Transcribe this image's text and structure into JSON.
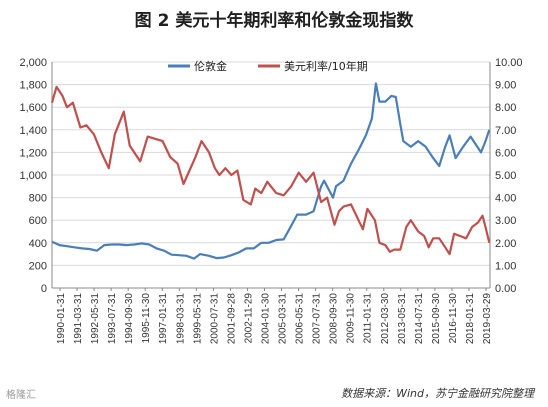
{
  "title": "图 2 美元十年期利率和伦敦金现指数",
  "source_note": "数据来源：Wind，苏宁金融研究院整理",
  "watermark": "格隆汇",
  "chart_data": {
    "type": "line",
    "left_axis": {
      "ylim": [
        0,
        2000
      ],
      "ticks": [
        "0",
        "200",
        "400",
        "600",
        "800",
        "1,000",
        "1,200",
        "1,400",
        "1,600",
        "1,800",
        "2,000"
      ]
    },
    "right_axis": {
      "ylim": [
        0,
        10
      ],
      "ticks": [
        "0.00",
        "1.00",
        "2.00",
        "3.00",
        "4.00",
        "5.00",
        "6.00",
        "7.00",
        "8.00",
        "9.00",
        "10.00"
      ]
    },
    "x_range": [
      "1990-01-31",
      "2019-03-31"
    ],
    "x_tick_labels": [
      "1990-01-31",
      "1991-03-31",
      "1992-05-31",
      "1993-07-31",
      "1994-09-30",
      "1995-11-30",
      "1997-01-31",
      "1998-03-31",
      "1999-05-31",
      "2000-07-31",
      "2001-09-28",
      "2002-11-29",
      "2004-01-30",
      "2005-03-31",
      "2006-05-31",
      "2007-07-31",
      "2008-09-30",
      "2009-11-30",
      "2011-01-31",
      "2012-03-30",
      "2013-05-31",
      "2014-07-31",
      "2015-09-30",
      "2016-11-30",
      "2018-01-31",
      "2019-03-29"
    ],
    "grid": true,
    "legend_position": "top",
    "series": [
      {
        "name": "伦敦金",
        "axis": "left",
        "color": "#4a7ebb",
        "x": [
          1990.0,
          1990.5,
          1991.0,
          1991.5,
          1992.0,
          1992.5,
          1993.0,
          1993.5,
          1994.0,
          1994.5,
          1995.0,
          1995.5,
          1996.0,
          1996.5,
          1997.0,
          1997.5,
          1998.0,
          1998.5,
          1999.0,
          1999.5,
          1999.9,
          2000.5,
          2001.0,
          2001.5,
          2002.0,
          2002.5,
          2003.0,
          2003.5,
          2004.0,
          2004.5,
          2005.0,
          2005.5,
          2006.0,
          2006.4,
          2007.0,
          2007.5,
          2008.0,
          2008.2,
          2008.8,
          2009.0,
          2009.5,
          2010.0,
          2010.5,
          2011.0,
          2011.4,
          2011.67,
          2011.9,
          2012.3,
          2012.7,
          2013.0,
          2013.3,
          2013.5,
          2014.0,
          2014.5,
          2015.0,
          2015.5,
          2015.9,
          2016.3,
          2016.6,
          2017.0,
          2017.5,
          2018.0,
          2018.7,
          2019.0,
          2019.25
        ],
        "y": [
          410,
          380,
          370,
          360,
          350,
          345,
          330,
          380,
          385,
          385,
          380,
          385,
          395,
          385,
          350,
          330,
          295,
          290,
          285,
          260,
          300,
          285,
          265,
          270,
          290,
          315,
          350,
          350,
          400,
          400,
          425,
          430,
          550,
          650,
          650,
          680,
          900,
          950,
          800,
          900,
          950,
          1100,
          1220,
          1350,
          1500,
          1810,
          1650,
          1650,
          1700,
          1690,
          1450,
          1300,
          1250,
          1300,
          1250,
          1150,
          1080,
          1250,
          1350,
          1150,
          1250,
          1340,
          1200,
          1300,
          1400
        ]
      },
      {
        "name": "美元利率/10年期",
        "axis": "right",
        "color": "#c0504d",
        "x": [
          1990.0,
          1990.3,
          1990.7,
          1991.0,
          1991.4,
          1991.9,
          1992.3,
          1992.8,
          1993.3,
          1993.8,
          1994.2,
          1994.8,
          1995.2,
          1995.9,
          1996.4,
          1996.9,
          1997.4,
          1997.9,
          1998.4,
          1998.8,
          1999.2,
          1999.6,
          2000.0,
          2000.5,
          2000.9,
          2001.2,
          2001.6,
          2002.0,
          2002.4,
          2002.8,
          2003.3,
          2003.6,
          2004.0,
          2004.4,
          2005.0,
          2005.5,
          2006.0,
          2006.5,
          2007.0,
          2007.5,
          2008.0,
          2008.4,
          2008.9,
          2009.2,
          2009.5,
          2010.0,
          2010.5,
          2010.8,
          2011.1,
          2011.6,
          2011.9,
          2012.3,
          2012.6,
          2012.9,
          2013.3,
          2013.7,
          2014.0,
          2014.5,
          2014.9,
          2015.2,
          2015.5,
          2015.9,
          2016.3,
          2016.6,
          2016.9,
          2017.3,
          2017.7,
          2018.1,
          2018.5,
          2018.8,
          2019.0,
          2019.25
        ],
        "y": [
          8.2,
          8.9,
          8.5,
          8.0,
          8.2,
          7.1,
          7.2,
          6.8,
          6.0,
          5.3,
          6.8,
          7.8,
          6.3,
          5.6,
          6.7,
          6.6,
          6.5,
          5.8,
          5.5,
          4.6,
          5.2,
          5.8,
          6.5,
          6.0,
          5.3,
          5.0,
          5.3,
          5.0,
          5.2,
          3.9,
          3.7,
          4.4,
          4.2,
          4.7,
          4.2,
          4.1,
          4.5,
          5.1,
          4.7,
          5.1,
          3.8,
          4.0,
          2.8,
          3.4,
          3.6,
          3.7,
          3.0,
          2.6,
          3.5,
          3.0,
          2.0,
          1.9,
          1.6,
          1.7,
          1.7,
          2.7,
          3.0,
          2.5,
          2.3,
          1.8,
          2.2,
          2.2,
          1.8,
          1.5,
          2.4,
          2.3,
          2.2,
          2.7,
          2.9,
          3.2,
          2.7,
          2.0
        ]
      }
    ]
  }
}
